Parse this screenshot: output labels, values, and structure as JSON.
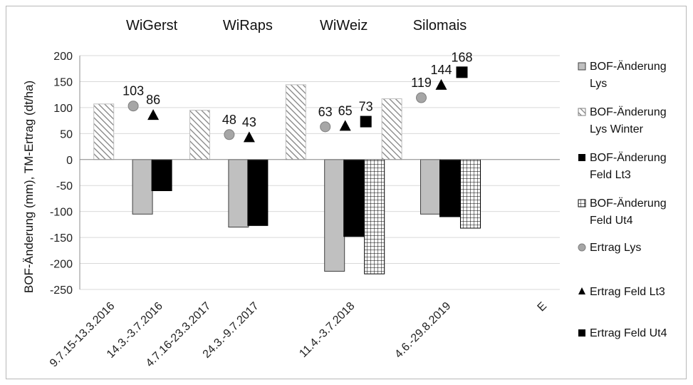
{
  "chart_data": {
    "type": "bar",
    "ylabel": "BOF-Änderung (mm), TM-Ertrag (dt/ha)",
    "ylim": [
      -250,
      200
    ],
    "yticks": [
      200,
      150,
      100,
      50,
      0,
      -50,
      -100,
      -150,
      -200,
      -250
    ],
    "grid": true,
    "legend_position": "right",
    "group_labels": [
      "WiGerst",
      "WiRaps",
      "WiWeiz",
      "Silomais"
    ],
    "categories": [
      "9.7.15-13.3.2016",
      "14.3.-3.7.2016",
      "4.7.16-23.3.2017",
      "24.3.-9.7.2017",
      "",
      "11.4.-3.7.2018",
      "",
      "4.6.-29.8.2019",
      "",
      "E"
    ],
    "series": [
      {
        "name": "BOF-Änderung Lys",
        "kind": "bar",
        "pattern": "solid-gray",
        "values": [
          null,
          -105,
          null,
          -130,
          null,
          -215,
          null,
          -105,
          null,
          null
        ]
      },
      {
        "name": "BOF-Änderung Lys Winter",
        "kind": "bar",
        "pattern": "hatch",
        "values": [
          107,
          null,
          95,
          null,
          144,
          null,
          117,
          null,
          null,
          null
        ]
      },
      {
        "name": "BOF-Änderung Feld Lt3",
        "kind": "bar",
        "pattern": "solid-black",
        "values": [
          null,
          -60,
          null,
          -127,
          null,
          -148,
          null,
          -110,
          null,
          null
        ]
      },
      {
        "name": "BOF-Änderung Feld Ut4",
        "kind": "bar",
        "pattern": "grid",
        "values": [
          null,
          null,
          null,
          null,
          null,
          -220,
          null,
          -132,
          null,
          null
        ]
      },
      {
        "name": "Ertrag Lys",
        "kind": "marker",
        "marker": "circle",
        "values": [
          null,
          103,
          null,
          48,
          null,
          63,
          null,
          119,
          null,
          null
        ],
        "labels": [
          "",
          "103",
          "",
          "48",
          "",
          "63",
          "",
          "119",
          "",
          ""
        ]
      },
      {
        "name": "Ertrag Feld Lt3",
        "kind": "marker",
        "marker": "triangle",
        "values": [
          null,
          86,
          null,
          43,
          null,
          65,
          null,
          144,
          null,
          null
        ],
        "labels": [
          "",
          "86",
          "",
          "43",
          "",
          "65",
          "",
          "144",
          "",
          ""
        ]
      },
      {
        "name": "Ertrag Feld Ut4",
        "kind": "marker",
        "marker": "square",
        "values": [
          null,
          null,
          null,
          null,
          null,
          73,
          null,
          168,
          null,
          null
        ],
        "labels": [
          "",
          "",
          "",
          "",
          "",
          "73",
          "",
          "168",
          "",
          ""
        ]
      }
    ],
    "legend": [
      {
        "line1": "BOF-Änderung",
        "line2": "Lys",
        "swatch": "solid-gray"
      },
      {
        "line1": "BOF-Änderung",
        "line2": "Lys Winter",
        "swatch": "hatch"
      },
      {
        "line1": "BOF-Änderung",
        "line2": "Feld Lt3",
        "swatch": "solid-black"
      },
      {
        "line1": "BOF-Änderung",
        "line2": "Feld Ut4",
        "swatch": "grid"
      },
      {
        "line1": "Ertrag Lys",
        "line2": "",
        "swatch": "circle"
      },
      {
        "line1": "Ertrag Feld Lt3",
        "line2": "",
        "swatch": "triangle"
      },
      {
        "line1": "Ertrag Feld Ut4",
        "line2": "",
        "swatch": "square"
      }
    ],
    "colors": {
      "gray_bar": "#c0c0c0",
      "black": "#000000",
      "marker_gray": "#a6a6a6",
      "grid": "#d9d9d9"
    }
  }
}
